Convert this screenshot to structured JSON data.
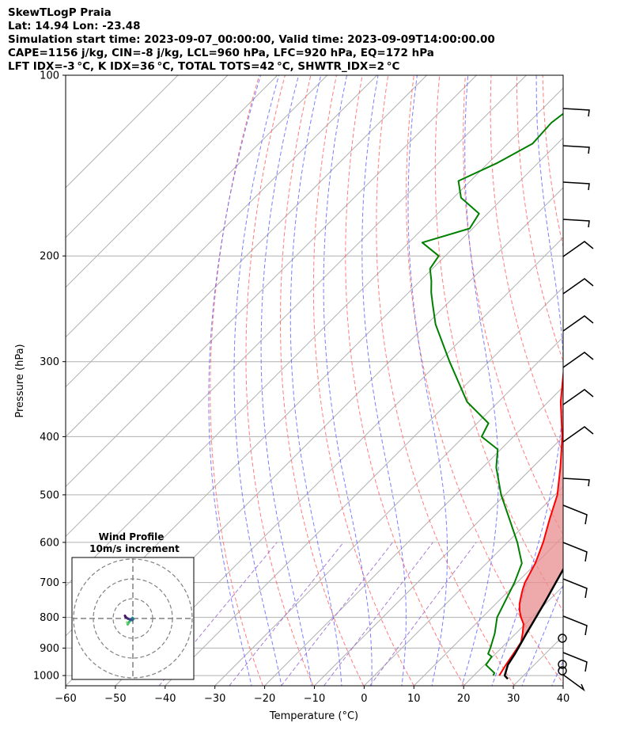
{
  "header": {
    "title": "SkewTLogP Praia",
    "location": "Lat: 14.94   Lon: -23.48",
    "times": "Simulation start time: 2023-09-07_00:00:00, Valid time: 2023-09-09T14:00:00.00",
    "indices1": "CAPE=1156 j/kg, CIN=-8 j/kg, LCL=960 hPa, LFC=920 hPa, EQ=172 hPa",
    "indices2": "LFT IDX=-3 °C, K IDX=36 °C, TOTAL TOTS=42 °C, SHWTR_IDX=2 °C"
  },
  "chart_data": {
    "type": "line",
    "subtype": "skew-T log-p",
    "xlabel": "Temperature (°C)",
    "ylabel": "Pressure (hPa)",
    "xlim": [
      -60,
      40
    ],
    "ylim": [
      1040,
      100
    ],
    "y_scale": "log",
    "skew": "45 deg",
    "x_ticks": [
      -60,
      -50,
      -40,
      -30,
      -20,
      -10,
      0,
      10,
      20,
      30,
      40
    ],
    "y_ticks": [
      100,
      200,
      300,
      400,
      500,
      600,
      700,
      800,
      900,
      1000
    ],
    "grid": true,
    "colors": {
      "temperature": "#ff0000",
      "dewpoint": "#008000",
      "parcel": "#000000",
      "cape_fill": "#e88e8e",
      "cin_fill": "#7fb1d6",
      "dry_adiabats": "#ff6666",
      "moist_adiabats": "#6666ff",
      "mixing_ratio": "#9966cc",
      "isotherms": "#b0b0b0"
    },
    "series": [
      {
        "key": "temperature",
        "pressure": [
          1000,
          960,
          920,
          880,
          850,
          820,
          800,
          780,
          760,
          740,
          720,
          700,
          650,
          600,
          550,
          500,
          450,
          420,
          400,
          350,
          300,
          250,
          200,
          172,
          150,
          130,
          120,
          110,
          100
        ],
        "values": [
          25.1,
          24.3,
          23.6,
          22.8,
          21.3,
          19.6,
          17.8,
          16.2,
          14.8,
          13.7,
          12.6,
          11.6,
          9.8,
          7.2,
          3.9,
          0.5,
          -4.4,
          -7.8,
          -10.2,
          -17.5,
          -24.8,
          -34.1,
          -46.2,
          -53.9,
          -60.7,
          -68.8,
          -69.2,
          -68.8,
          -68.4
        ]
      },
      {
        "key": "dewpoint",
        "pressure": [
          1000,
          990,
          960,
          930,
          920,
          900,
          850,
          800,
          700,
          650,
          600,
          550,
          500,
          450,
          420,
          400,
          380,
          350,
          300,
          260,
          240,
          230,
          220,
          210,
          200,
          190,
          180,
          170,
          160,
          150,
          140,
          130,
          120,
          110,
          100
        ],
        "values": [
          23.9,
          23.6,
          20.3,
          19.8,
          18.5,
          17.8,
          15.7,
          13.0,
          9.5,
          7.1,
          2.0,
          -4.1,
          -10.8,
          -17.3,
          -20.6,
          -26.4,
          -27.7,
          -36.3,
          -47.9,
          -58.2,
          -63.0,
          -65.5,
          -67.8,
          -70.5,
          -71.3,
          -77.3,
          -70.6,
          -71.7,
          -78.5,
          -82.4,
          -78.2,
          -75.0,
          -75.4,
          -74.0,
          -71.9
        ]
      },
      {
        "key": "parcel",
        "pressure": [
          1013,
          1000,
          960,
          920,
          880,
          850,
          800,
          750,
          700,
          650,
          600,
          550,
          500,
          450,
          400,
          350,
          300,
          250,
          200,
          172,
          150,
          130,
          120,
          110,
          100
        ],
        "values": [
          27.5,
          26.2,
          24.7,
          23.9,
          22.9,
          22.1,
          20.8,
          19.4,
          17.8,
          16.1,
          14.1,
          11.8,
          9.0,
          5.8,
          1.7,
          -3.5,
          -10.4,
          -20.0,
          -34.4,
          -44.6,
          -53.2,
          -62.5,
          -67.9,
          -73.8,
          -80.6
        ]
      }
    ],
    "hodograph": {
      "title": "Wind Profile",
      "subtitle": "10m/s increment",
      "u": [
        -3.0,
        -2.5,
        -2.6,
        -1.9,
        -1.3,
        -0.8,
        -0.2,
        0.2,
        -0.3,
        -0.8,
        -1.6,
        -2.5,
        -3.4,
        -3.8,
        -4.0
      ],
      "v": [
        -2.0,
        -2.6,
        -3.0,
        -1.8,
        -1.0,
        -0.3,
        0.3,
        -0.3,
        -0.9,
        -0.6,
        -0.4,
        -0.1,
        0.5,
        0.9,
        1.4
      ]
    }
  }
}
